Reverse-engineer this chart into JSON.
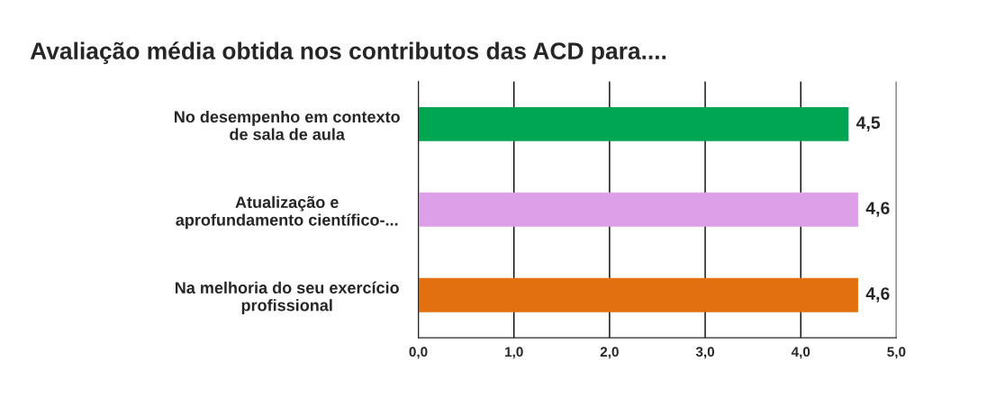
{
  "chart_data": {
    "type": "bar",
    "orientation": "horizontal",
    "title": "Avaliação média obtida nos contributos das ACD para....",
    "categories": [
      "No desempenho em contexto\nde sala de aula",
      "Atualização e\naprofundamento científico-...",
      "Na melhoria do seu exercício\nprofissional"
    ],
    "values": [
      4.5,
      4.6,
      4.6
    ],
    "colors": [
      "#00a651",
      "#dda0e8",
      "#e2700f"
    ],
    "value_labels": [
      "4,5",
      "4,6",
      "4,6"
    ],
    "xlim": [
      0,
      5
    ],
    "xticks": [
      {
        "value": 0,
        "label": "0,0"
      },
      {
        "value": 1,
        "label": "1,0"
      },
      {
        "value": 2,
        "label": "2,0"
      },
      {
        "value": 3,
        "label": "3,0"
      },
      {
        "value": 4,
        "label": "4,0"
      },
      {
        "value": 5,
        "label": "5,0"
      }
    ],
    "grid": "x",
    "legend": false
  }
}
